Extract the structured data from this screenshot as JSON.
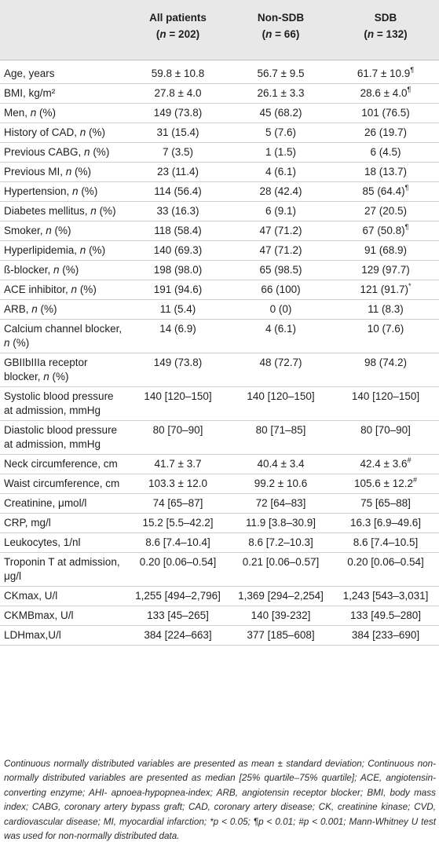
{
  "header": {
    "col1": "",
    "col2": {
      "name": "All patients",
      "n": "(n = 202)"
    },
    "col3": {
      "name": "Non-SDB",
      "n": "(n = 66)"
    },
    "col4": {
      "name": "SDB",
      "n": "(n = 132)"
    }
  },
  "rows": [
    [
      "Age, years",
      "59.8 ± 10.8",
      "56.7 ± 9.5",
      "61.7 ± 10.9¶"
    ],
    [
      "BMI, kg/m²",
      "27.8 ± 4.0",
      "26.1 ± 3.3",
      "28.6 ± 4.0¶"
    ],
    [
      "Men, n (%)",
      "149 (73.8)",
      "45 (68.2)",
      "101 (76.5)"
    ],
    [
      "History of CAD, n (%)",
      "31 (15.4)",
      "5 (7.6)",
      "26 (19.7)"
    ],
    [
      "Previous CABG, n (%)",
      "7 (3.5)",
      "1 (1.5)",
      "6 (4.5)"
    ],
    [
      "Previous MI, n (%)",
      "23 (11.4)",
      "4 (6.1)",
      "18 (13.7)"
    ],
    [
      "Hypertension, n (%)",
      "114 (56.4)",
      "28 (42.4)",
      "85 (64.4)¶"
    ],
    [
      "Diabetes mellitus, n (%)",
      "33 (16.3)",
      "6 (9.1)",
      "27 (20.5)"
    ],
    [
      "Smoker, n (%)",
      "118 (58.4)",
      "47 (71.2)",
      "67 (50.8)¶"
    ],
    [
      "Hyperlipidemia, n (%)",
      "140 (69.3)",
      "47 (71.2)",
      "91 (68.9)"
    ],
    [
      "ß-blocker, n (%)",
      "198 (98.0)",
      "65 (98.5)",
      "129 (97.7)"
    ],
    [
      "ACE inhibitor, n (%)",
      "191 (94.6)",
      "66 (100)",
      "121 (91.7)*"
    ],
    [
      "ARB, n (%)",
      "11 (5.4)",
      "0 (0)",
      "11 (8.3)"
    ],
    [
      "Calcium channel blocker, n (%)",
      "14 (6.9)",
      "4 (6.1)",
      "10 (7.6)"
    ],
    [
      "GBIIbIIIa receptor blocker, n (%)",
      "149 (73.8)",
      "48 (72.7)",
      "98 (74.2)"
    ],
    [
      "Systolic blood pressure at admission, mmHg",
      "140 [120–150]",
      "140 [120–150]",
      "140 [120–150]"
    ],
    [
      "Diastolic blood pressure at admission, mmHg",
      "80 [70–90]",
      "80 [71–85]",
      "80 [70–90]"
    ],
    [
      "Neck circumference, cm",
      "41.7 ± 3.7",
      "40.4 ± 3.4",
      "42.4 ± 3.6#"
    ],
    [
      "Waist circumference, cm",
      "103.3 ± 12.0",
      "99.2 ± 10.6",
      "105.6 ± 12.2#"
    ],
    [
      "Creatinine, μmol/l",
      "74 [65–87]",
      "72 [64–83]",
      "75 [65–88]"
    ],
    [
      "CRP, mg/l",
      "15.2 [5.5–42.2]",
      "11.9 [3.8–30.9]",
      "16.3 [6.9–49.6]"
    ],
    [
      "Leukocytes, 1/nl",
      "8.6 [7.4–10.4]",
      "8.6 [7.2–10.3]",
      "8.6 [7.4–10.5]"
    ],
    [
      "Troponin T at admission, μg/l",
      "0.20 [0.06–0.54]",
      "0.21 [0.06–0.57]",
      "0.20 [0.06–0.54]"
    ],
    [
      "CKmax, U/l",
      "1,255 [494–2,796]",
      "1,369 [294–2,254]",
      "1,243 [543–3,031]"
    ],
    [
      "CKMBmax, U/l",
      "133 [45–265]",
      "140 [39-232]",
      "133 [49.5–280]"
    ],
    [
      "LDHmax,U/l",
      "384 [224–663]",
      "377 [185–608]",
      "384 [233–690]"
    ]
  ],
  "footnote": "Continuous normally distributed variables are presented as mean ± standard deviation; Continuous non-normally distributed variables are presented as median [25% quartile–75% quartile]; ACE, angiotensin-converting enzyme; AHI- apnoea-hypopnea-index; ARB, angiotensin receptor blocker; BMI, body mass index; CABG, coronary artery bypass graft; CAD, coronary artery disease; CK, creatinine kinase; CVD, cardiovascular disease; MI, myocardial infarction; *p < 0.05; ¶p < 0.01; #p < 0.001; Mann-Whitney U test was used for non-normally distributed data."
}
